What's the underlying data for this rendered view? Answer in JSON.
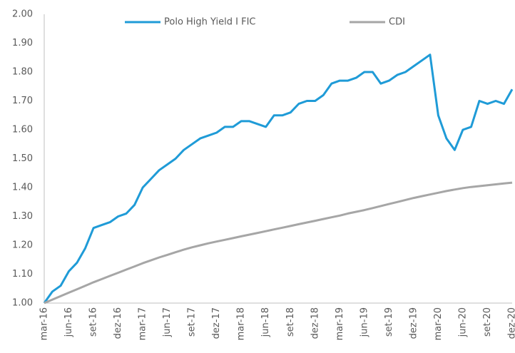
{
  "chart_data": {
    "type": "line",
    "x": [
      "mar-16",
      null,
      null,
      "jun-16",
      null,
      null,
      "set-16",
      null,
      null,
      "dez-16",
      null,
      null,
      "mar-17",
      null,
      null,
      "jun-17",
      null,
      null,
      "set-17",
      null,
      null,
      "dez-17",
      null,
      null,
      "mar-18",
      null,
      null,
      "jun-18",
      null,
      null,
      "set-18",
      null,
      null,
      "dez-18",
      null,
      null,
      "mar-19",
      null,
      null,
      "jun-19",
      null,
      null,
      "set-19",
      null,
      null,
      "dez-19",
      null,
      null,
      "mar-20",
      null,
      null,
      "jun-20",
      null,
      null,
      "set-20",
      null,
      null,
      "dez-20"
    ],
    "series": [
      {
        "name": "Polo High Yield I FIC",
        "color": "#1f9bd7",
        "values": [
          1.0,
          1.04,
          1.06,
          1.11,
          1.14,
          1.19,
          1.26,
          1.27,
          1.28,
          1.3,
          1.31,
          1.34,
          1.4,
          1.43,
          1.46,
          1.48,
          1.5,
          1.53,
          1.55,
          1.57,
          1.58,
          1.59,
          1.61,
          1.61,
          1.63,
          1.63,
          1.62,
          1.61,
          1.65,
          1.65,
          1.66,
          1.69,
          1.7,
          1.7,
          1.72,
          1.76,
          1.77,
          1.77,
          1.78,
          1.8,
          1.8,
          1.76,
          1.77,
          1.79,
          1.8,
          1.82,
          1.84,
          1.86,
          1.65,
          1.57,
          1.53,
          1.6,
          1.61,
          1.7,
          1.69,
          1.7,
          1.69,
          1.74
        ]
      },
      {
        "name": "CDI",
        "color": "#a6a6a6",
        "values": [
          1.0,
          1.012,
          1.024,
          1.036,
          1.048,
          1.06,
          1.072,
          1.083,
          1.094,
          1.105,
          1.116,
          1.127,
          1.138,
          1.148,
          1.158,
          1.167,
          1.176,
          1.185,
          1.193,
          1.2,
          1.207,
          1.213,
          1.219,
          1.225,
          1.231,
          1.237,
          1.243,
          1.249,
          1.255,
          1.261,
          1.267,
          1.273,
          1.279,
          1.285,
          1.291,
          1.297,
          1.303,
          1.31,
          1.316,
          1.322,
          1.329,
          1.336,
          1.343,
          1.35,
          1.357,
          1.364,
          1.37,
          1.376,
          1.382,
          1.388,
          1.393,
          1.398,
          1.402,
          1.405,
          1.408,
          1.411,
          1.414,
          1.417
        ]
      }
    ],
    "ylim": [
      1.0,
      2.0
    ],
    "yticks": [
      {
        "value": 1.0,
        "label": "1.00"
      },
      {
        "value": 1.1,
        "label": "1.10"
      },
      {
        "value": 1.2,
        "label": "1.20"
      },
      {
        "value": 1.3,
        "label": "1.30"
      },
      {
        "value": 1.4,
        "label": "1.40"
      },
      {
        "value": 1.5,
        "label": "1.50"
      },
      {
        "value": 1.6,
        "label": "1.60"
      },
      {
        "value": 1.7,
        "label": "1.70"
      },
      {
        "value": 1.8,
        "label": "1.80"
      },
      {
        "value": 1.9,
        "label": "1.90"
      },
      {
        "value": 2.0,
        "label": "2.00"
      }
    ],
    "grid": false,
    "legend": "top"
  }
}
